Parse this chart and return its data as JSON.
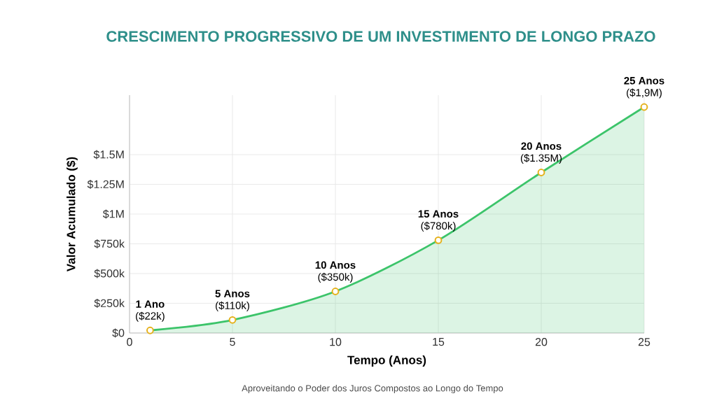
{
  "chart_data": {
    "type": "area",
    "title": "CRESCIMENTO PROGRESSIVO DE UM INVESTIMENTO DE LONGO PRAZO",
    "xlabel": "Tempo (Anos)",
    "ylabel": "Valor Acumulado ($)",
    "x": [
      1,
      5,
      10,
      15,
      20,
      25
    ],
    "series": [
      {
        "color": "#3cc46a",
        "values": [
          22000,
          110000,
          350000,
          780000,
          1350000,
          1900000
        ],
        "value_labels": [
          "($22k)",
          "($110k)",
          "($350k)",
          "($780k)",
          "($1.35M)",
          "($1,9M)"
        ]
      }
    ],
    "xlim": [
      0,
      25
    ],
    "xticks": [
      0,
      5,
      10,
      15,
      20,
      25
    ],
    "ylim": [
      0,
      2000000
    ],
    "yticks": [
      {
        "value": 0,
        "label": "$0"
      },
      {
        "value": 250000,
        "label": "$250k"
      },
      {
        "value": 500000,
        "label": "$500k"
      },
      {
        "value": 750000,
        "label": "$750k"
      },
      {
        "value": 1000000,
        "label": "$1M"
      },
      {
        "value": 1250000,
        "label": "$1.25M"
      },
      {
        "value": 1500000,
        "label": "$1.5M"
      }
    ],
    "grid": true,
    "marker": "circle",
    "line_style": "solid",
    "annotations": [
      {
        "text": "1 Ano",
        "x": 1,
        "y": 22000
      },
      {
        "text": "5 Anos",
        "x": 5,
        "y": 110000
      },
      {
        "text": "10 Anos",
        "x": 10,
        "y": 350000
      },
      {
        "text": "15 Anos",
        "x": 15,
        "y": 780000
      },
      {
        "text": "20 Anos",
        "x": 20,
        "y": 1350000
      },
      {
        "text": "25 Anos",
        "x": 25,
        "y": 1900000
      },
      "Aproveitando o Poder dos Juros Compostos ao Longo do Tempo"
    ]
  }
}
